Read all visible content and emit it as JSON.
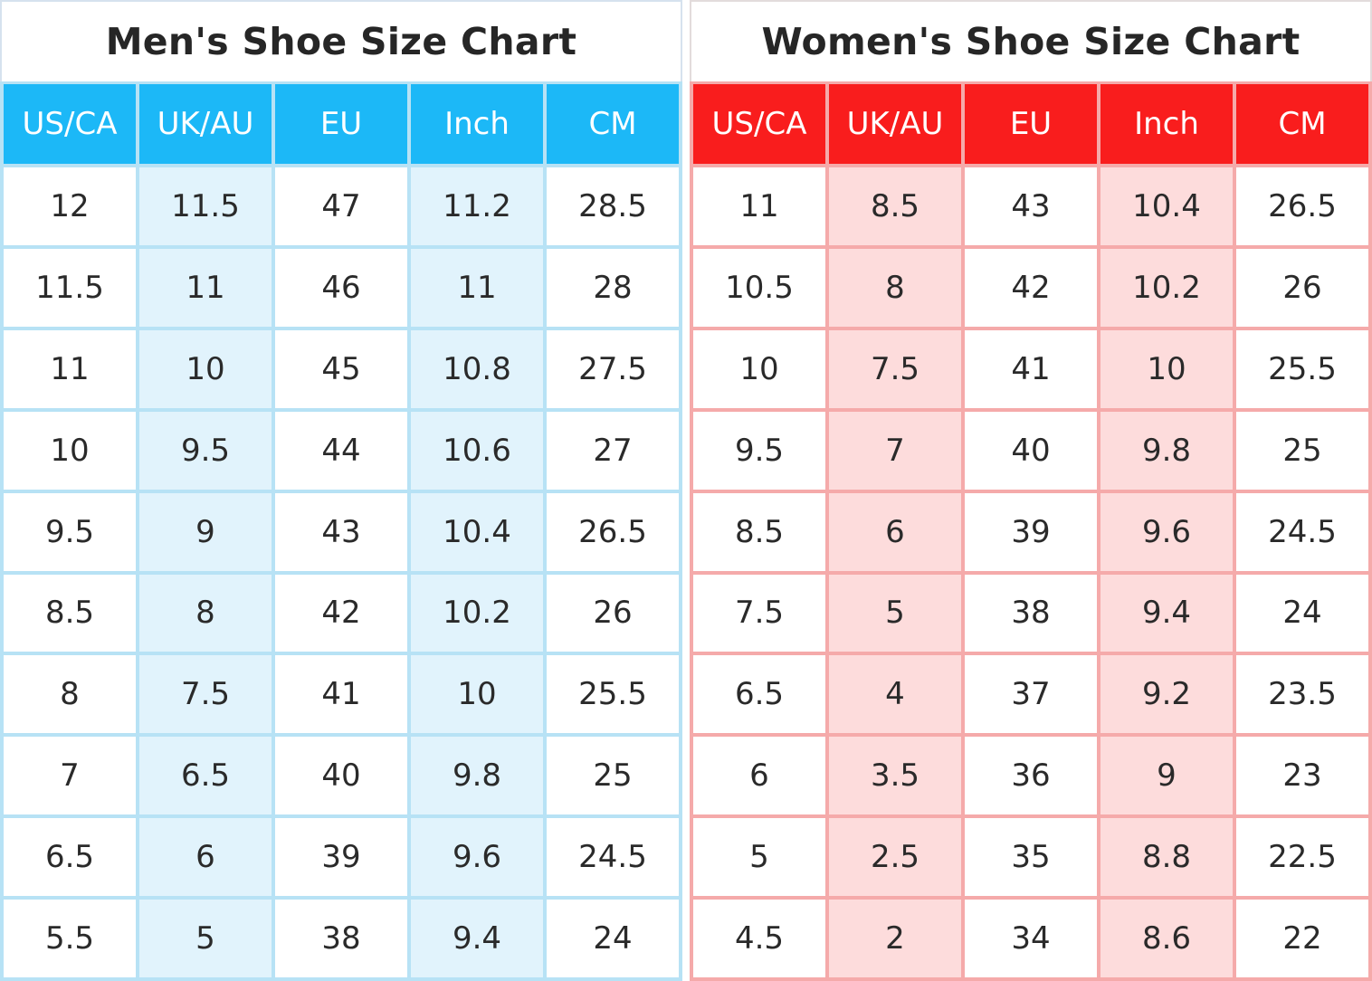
{
  "men": {
    "title": "Men's Shoe Size Chart",
    "headers": [
      "US/CA",
      "UK/AU",
      "EU",
      "Inch",
      "CM"
    ],
    "rows": [
      [
        "12",
        "11.5",
        "47",
        "11.2",
        "28.5"
      ],
      [
        "11.5",
        "11",
        "46",
        "11",
        "28"
      ],
      [
        "11",
        "10",
        "45",
        "10.8",
        "27.5"
      ],
      [
        "10",
        "9.5",
        "44",
        "10.6",
        "27"
      ],
      [
        "9.5",
        "9",
        "43",
        "10.4",
        "26.5"
      ],
      [
        "8.5",
        "8",
        "42",
        "10.2",
        "26"
      ],
      [
        "8",
        "7.5",
        "41",
        "10",
        "25.5"
      ],
      [
        "7",
        "6.5",
        "40",
        "9.8",
        "25"
      ],
      [
        "6.5",
        "6",
        "39",
        "9.6",
        "24.5"
      ],
      [
        "5.5",
        "5",
        "38",
        "9.4",
        "24"
      ]
    ]
  },
  "women": {
    "title": "Women's Shoe Size Chart",
    "headers": [
      "US/CA",
      "UK/AU",
      "EU",
      "Inch",
      "CM"
    ],
    "rows": [
      [
        "11",
        "8.5",
        "43",
        "10.4",
        "26.5"
      ],
      [
        "10.5",
        "8",
        "42",
        "10.2",
        "26"
      ],
      [
        "10",
        "7.5",
        "41",
        "10",
        "25.5"
      ],
      [
        "9.5",
        "7",
        "40",
        "9.8",
        "25"
      ],
      [
        "8.5",
        "6",
        "39",
        "9.6",
        "24.5"
      ],
      [
        "7.5",
        "5",
        "38",
        "9.4",
        "24"
      ],
      [
        "6.5",
        "4",
        "37",
        "9.2",
        "23.5"
      ],
      [
        "6",
        "3.5",
        "36",
        "9",
        "23"
      ],
      [
        "5",
        "2.5",
        "35",
        "8.8",
        "22.5"
      ],
      [
        "4.5",
        "2",
        "34",
        "8.6",
        "22"
      ]
    ]
  },
  "colors": {
    "men_header": "#1cb8f7",
    "men_shade": "#e1f3fc",
    "men_border": "#b7e2f5",
    "women_header": "#f91d1d",
    "women_shade": "#fddcdc",
    "women_border": "#f5aaaa"
  }
}
